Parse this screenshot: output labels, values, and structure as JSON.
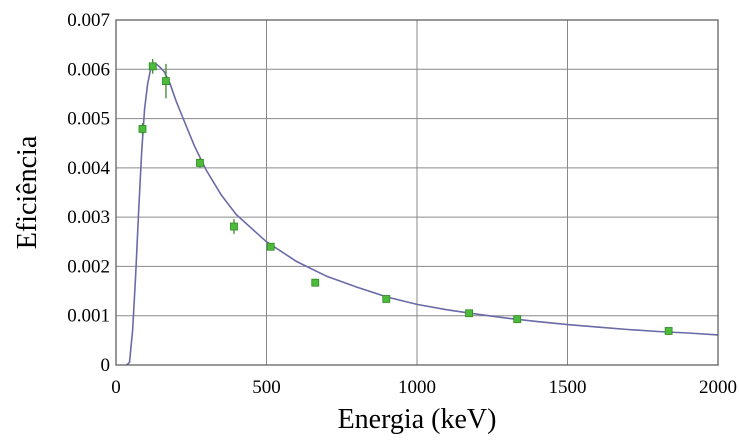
{
  "chart_data": {
    "type": "scatter",
    "title": "",
    "xlabel": "Energia (keV)",
    "ylabel": "Eficiência",
    "xlim": [
      0,
      2000
    ],
    "ylim": [
      0,
      0.007
    ],
    "grid": true,
    "x_ticks": [
      0,
      500,
      1000,
      1500,
      2000
    ],
    "x_tick_labels": [
      "0",
      "500",
      "1000",
      "1500",
      "2000"
    ],
    "y_ticks": [
      0,
      0.001,
      0.002,
      0.003,
      0.004,
      0.005,
      0.006,
      0.007
    ],
    "y_tick_labels": [
      "0",
      "0.001",
      "0.002",
      "0.003",
      "0.004",
      "0.005",
      "0.006",
      "0.007"
    ],
    "series": [
      {
        "type": "scatter",
        "color": "#4dbb3a",
        "points": [
          {
            "x": 88,
            "y": 0.00479,
            "err": 0.00012
          },
          {
            "x": 122,
            "y": 0.00606,
            "err": 0.00015
          },
          {
            "x": 166,
            "y": 0.00576,
            "err": 0.00035
          },
          {
            "x": 279,
            "y": 0.0041,
            "err": 0.0001
          },
          {
            "x": 392,
            "y": 0.00281,
            "err": 0.00015
          },
          {
            "x": 514,
            "y": 0.0024,
            "err": 5e-05
          },
          {
            "x": 662,
            "y": 0.00167,
            "err": 4e-05
          },
          {
            "x": 898,
            "y": 0.00134,
            "err": 3e-05
          },
          {
            "x": 1173,
            "y": 0.00105,
            "err": 3e-05
          },
          {
            "x": 1333,
            "y": 0.00093,
            "err": 3e-05
          },
          {
            "x": 1836,
            "y": 0.00069,
            "err": 2e-05
          }
        ]
      },
      {
        "type": "line",
        "color": "#6a6aa8",
        "points": [
          {
            "x": 35,
            "y": 0.0
          },
          {
            "x": 45,
            "y": 5e-05
          },
          {
            "x": 55,
            "y": 0.0007
          },
          {
            "x": 65,
            "y": 0.0018
          },
          {
            "x": 75,
            "y": 0.0031
          },
          {
            "x": 85,
            "y": 0.0043
          },
          {
            "x": 95,
            "y": 0.0052
          },
          {
            "x": 105,
            "y": 0.0057
          },
          {
            "x": 115,
            "y": 0.006
          },
          {
            "x": 125,
            "y": 0.00608
          },
          {
            "x": 135,
            "y": 0.0061
          },
          {
            "x": 145,
            "y": 0.00605
          },
          {
            "x": 160,
            "y": 0.00595
          },
          {
            "x": 180,
            "y": 0.0057
          },
          {
            "x": 200,
            "y": 0.00535
          },
          {
            "x": 230,
            "y": 0.0049
          },
          {
            "x": 260,
            "y": 0.00445
          },
          {
            "x": 300,
            "y": 0.00395
          },
          {
            "x": 350,
            "y": 0.00345
          },
          {
            "x": 400,
            "y": 0.00305
          },
          {
            "x": 500,
            "y": 0.0025
          },
          {
            "x": 600,
            "y": 0.0021
          },
          {
            "x": 700,
            "y": 0.0018
          },
          {
            "x": 800,
            "y": 0.00158
          },
          {
            "x": 900,
            "y": 0.00138
          },
          {
            "x": 1000,
            "y": 0.00123
          },
          {
            "x": 1100,
            "y": 0.00112
          },
          {
            "x": 1200,
            "y": 0.00103
          },
          {
            "x": 1300,
            "y": 0.00095
          },
          {
            "x": 1400,
            "y": 0.00088
          },
          {
            "x": 1500,
            "y": 0.00082
          },
          {
            "x": 1600,
            "y": 0.00077
          },
          {
            "x": 1700,
            "y": 0.00072
          },
          {
            "x": 1800,
            "y": 0.00068
          },
          {
            "x": 1900,
            "y": 0.00065
          },
          {
            "x": 2000,
            "y": 0.00061
          }
        ]
      }
    ]
  }
}
